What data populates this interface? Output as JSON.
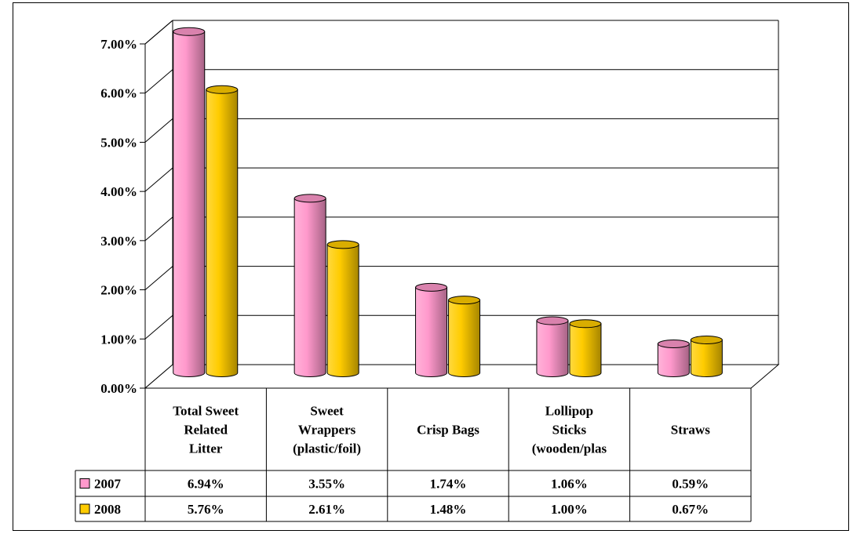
{
  "chart_data": {
    "type": "bar",
    "title": "",
    "xlabel": "",
    "ylabel": "",
    "ylim": [
      0,
      7
    ],
    "y_ticks": [
      "0.00%",
      "1.00%",
      "2.00%",
      "3.00%",
      "4.00%",
      "5.00%",
      "6.00%",
      "7.00%"
    ],
    "categories": [
      [
        "Total Sweet",
        "Related",
        "Litter"
      ],
      [
        "Sweet",
        "Wrappers",
        "(plastic/foil)"
      ],
      [
        "Crisp Bags"
      ],
      [
        "Lollipop",
        "Sticks",
        "(wooden/plas"
      ],
      [
        "Straws"
      ]
    ],
    "series": [
      {
        "name": "2007",
        "color": "#ff99cc",
        "values": [
          6.94,
          3.55,
          1.74,
          1.06,
          0.59
        ],
        "labels": [
          "6.94%",
          "3.55%",
          "1.74%",
          "1.06%",
          "0.59%"
        ]
      },
      {
        "name": "2008",
        "color": "#ffcc00",
        "values": [
          5.76,
          2.61,
          1.48,
          1.0,
          0.67
        ],
        "labels": [
          "5.76%",
          "2.61%",
          "1.48%",
          "1.00%",
          "0.67%"
        ]
      }
    ],
    "grid": true,
    "legend": "data-table",
    "style": "3d-cylinder"
  }
}
